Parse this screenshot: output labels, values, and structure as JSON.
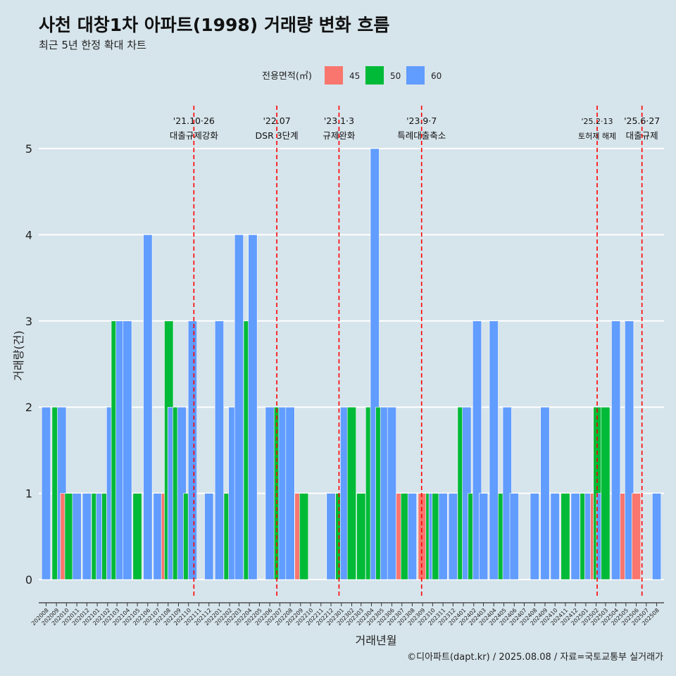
{
  "title": "사천 대창1차 아파트(1998) 거래량 변화 흐름",
  "subtitle": "최근 5년 한정 확대 차트",
  "caption": "©디아파트(dapt.kr) / 2025.08.08 / 자료=국토교통부 실거래가",
  "colors": {
    "background": "#d6e4eb",
    "s45": "#f8766d",
    "s50": "#00ba38",
    "s60": "#619cff",
    "vline": "#ff0000",
    "grid": "#ffffff"
  },
  "chart_data": {
    "type": "bar",
    "title": "사천 대창1차 아파트(1998) 거래량 변화 흐름",
    "subtitle": "최근 5년 한정 확대 차트",
    "xlabel": "거래년월",
    "ylabel": "거래량(건)",
    "ylim": [
      0,
      5
    ],
    "y_ticks": [
      0,
      1,
      2,
      3,
      4,
      5
    ],
    "grid": true,
    "legend": {
      "title": "전용면적(㎡)",
      "position": "top",
      "entries": [
        "45",
        "50",
        "60"
      ]
    },
    "categories": [
      "202008",
      "202009",
      "202010",
      "202011",
      "202012",
      "202101",
      "202102",
      "202103",
      "202104",
      "202105",
      "202106",
      "202107",
      "202108",
      "202109",
      "202110",
      "202111",
      "202112",
      "202201",
      "202202",
      "202203",
      "202204",
      "202205",
      "202206",
      "202207",
      "202208",
      "202209",
      "202210",
      "202211",
      "202212",
      "202301",
      "202302",
      "202303",
      "202304",
      "202305",
      "202306",
      "202307",
      "202308",
      "202309",
      "202310",
      "202311",
      "202312",
      "202401",
      "202402",
      "202403",
      "202404",
      "202405",
      "202406",
      "202407",
      "202408",
      "202409",
      "202410",
      "202411",
      "202412",
      "202501",
      "202502",
      "202503",
      "202504",
      "202505",
      "202506",
      "202507",
      "202508"
    ],
    "bars": [
      {
        "month": "202008",
        "series": "60",
        "x": "2020-08-10",
        "y": 2
      },
      {
        "month": "202009",
        "series": "50",
        "x": "2020-09-10",
        "y": 2
      },
      {
        "month": "202009",
        "series": "60",
        "x": "2020-09-26",
        "y": 2
      },
      {
        "month": "202010",
        "series": "45",
        "x": "2020-10-05",
        "y": 1
      },
      {
        "month": "202010",
        "series": "50",
        "x": "2020-10-18",
        "y": 1
      },
      {
        "month": "202011",
        "series": "60",
        "x": "2020-11-10",
        "y": 1
      },
      {
        "month": "202012",
        "series": "60",
        "x": "2020-12-10",
        "y": 1
      },
      {
        "month": "202101",
        "series": "50",
        "x": "2021-01-06",
        "y": 1
      },
      {
        "month": "202101",
        "series": "60",
        "x": "2021-01-20",
        "y": 1
      },
      {
        "month": "202102",
        "series": "50",
        "x": "2021-02-06",
        "y": 1
      },
      {
        "month": "202102",
        "series": "60",
        "x": "2021-02-20",
        "y": 2
      },
      {
        "month": "202103",
        "series": "50",
        "x": "2021-03-06",
        "y": 3
      },
      {
        "month": "202103",
        "series": "60",
        "x": "2021-03-20",
        "y": 3
      },
      {
        "month": "202104",
        "series": "60",
        "x": "2021-04-10",
        "y": 3
      },
      {
        "month": "202105",
        "series": "50",
        "x": "2021-05-10",
        "y": 1
      },
      {
        "month": "202106",
        "series": "60",
        "x": "2021-06-10",
        "y": 4
      },
      {
        "month": "202107",
        "series": "60",
        "x": "2021-07-10",
        "y": 1
      },
      {
        "month": "202108",
        "series": "45",
        "x": "2021-08-03",
        "y": 1
      },
      {
        "month": "202108",
        "series": "50",
        "x": "2021-08-12",
        "y": 3
      },
      {
        "month": "202108",
        "series": "60",
        "x": "2021-08-22",
        "y": 2
      },
      {
        "month": "202109",
        "series": "50",
        "x": "2021-09-06",
        "y": 2
      },
      {
        "month": "202109",
        "series": "60",
        "x": "2021-09-20",
        "y": 2
      },
      {
        "month": "202110",
        "series": "50",
        "x": "2021-10-08",
        "y": 1
      },
      {
        "month": "202110",
        "series": "60",
        "x": "2021-10-22",
        "y": 3
      },
      {
        "month": "202112",
        "series": "60",
        "x": "2021-12-10",
        "y": 1
      },
      {
        "month": "202201",
        "series": "60",
        "x": "2022-01-10",
        "y": 3
      },
      {
        "month": "202202",
        "series": "50",
        "x": "2022-02-06",
        "y": 1
      },
      {
        "month": "202202",
        "series": "60",
        "x": "2022-02-20",
        "y": 2
      },
      {
        "month": "202203",
        "series": "60",
        "x": "2022-03-10",
        "y": 4
      },
      {
        "month": "202204",
        "series": "50",
        "x": "2022-04-06",
        "y": 3
      },
      {
        "month": "202204",
        "series": "60",
        "x": "2022-04-20",
        "y": 4
      },
      {
        "month": "202206",
        "series": "60",
        "x": "2022-06-10",
        "y": 2
      },
      {
        "month": "202207",
        "series": "50",
        "x": "2022-07-06",
        "y": 2
      },
      {
        "month": "202207",
        "series": "60",
        "x": "2022-07-20",
        "y": 2
      },
      {
        "month": "202208",
        "series": "60",
        "x": "2022-08-10",
        "y": 2
      },
      {
        "month": "202209",
        "series": "45",
        "x": "2022-09-06",
        "y": 1
      },
      {
        "month": "202209",
        "series": "50",
        "x": "2022-09-20",
        "y": 1
      },
      {
        "month": "202212",
        "series": "60",
        "x": "2022-12-10",
        "y": 1
      },
      {
        "month": "202301",
        "series": "50",
        "x": "2023-01-06",
        "y": 1
      },
      {
        "month": "202301",
        "series": "60",
        "x": "2023-01-20",
        "y": 2
      },
      {
        "month": "202302",
        "series": "50",
        "x": "2023-02-10",
        "y": 2
      },
      {
        "month": "202303",
        "series": "50",
        "x": "2023-03-10",
        "y": 1
      },
      {
        "month": "202304",
        "series": "50",
        "x": "2023-04-06",
        "y": 2
      },
      {
        "month": "202304",
        "series": "60",
        "x": "2023-04-20",
        "y": 5
      },
      {
        "month": "202305",
        "series": "50",
        "x": "2023-05-06",
        "y": 2
      },
      {
        "month": "202305",
        "series": "60",
        "x": "2023-05-20",
        "y": 2
      },
      {
        "month": "202306",
        "series": "60",
        "x": "2023-06-10",
        "y": 2
      },
      {
        "month": "202307",
        "series": "45",
        "x": "2023-07-06",
        "y": 1
      },
      {
        "month": "202307",
        "series": "50",
        "x": "2023-07-20",
        "y": 1
      },
      {
        "month": "202308",
        "series": "60",
        "x": "2023-08-10",
        "y": 1
      },
      {
        "month": "202309",
        "series": "45",
        "x": "2023-09-10",
        "y": 1
      },
      {
        "month": "202310",
        "series": "50",
        "x": "2023-10-03",
        "y": 1
      },
      {
        "month": "202310",
        "series": "60",
        "x": "2023-10-12",
        "y": 1
      },
      {
        "month": "202310",
        "series": "50",
        "x": "2023-10-22",
        "y": 1
      },
      {
        "month": "202311",
        "series": "60",
        "x": "2023-11-10",
        "y": 1
      },
      {
        "month": "202312",
        "series": "60",
        "x": "2023-12-10",
        "y": 1
      },
      {
        "month": "202401",
        "series": "50",
        "x": "2024-01-06",
        "y": 2
      },
      {
        "month": "202401",
        "series": "60",
        "x": "2024-01-20",
        "y": 2
      },
      {
        "month": "202402",
        "series": "50",
        "x": "2024-02-06",
        "y": 1
      },
      {
        "month": "202402",
        "series": "60",
        "x": "2024-02-20",
        "y": 3
      },
      {
        "month": "202403",
        "series": "60",
        "x": "2024-03-10",
        "y": 1
      },
      {
        "month": "202404",
        "series": "60",
        "x": "2024-04-10",
        "y": 3
      },
      {
        "month": "202405",
        "series": "50",
        "x": "2024-05-06",
        "y": 1
      },
      {
        "month": "202405",
        "series": "60",
        "x": "2024-05-20",
        "y": 2
      },
      {
        "month": "202406",
        "series": "60",
        "x": "2024-06-10",
        "y": 1
      },
      {
        "month": "202408",
        "series": "60",
        "x": "2024-08-10",
        "y": 1
      },
      {
        "month": "202409",
        "series": "60",
        "x": "2024-09-10",
        "y": 2
      },
      {
        "month": "202410",
        "series": "60",
        "x": "2024-10-10",
        "y": 1
      },
      {
        "month": "202411",
        "series": "50",
        "x": "2024-11-10",
        "y": 1
      },
      {
        "month": "202412",
        "series": "60",
        "x": "2024-12-10",
        "y": 1
      },
      {
        "month": "202501",
        "series": "50",
        "x": "2025-01-06",
        "y": 1
      },
      {
        "month": "202501",
        "series": "60",
        "x": "2025-01-20",
        "y": 1
      },
      {
        "month": "202502",
        "series": "45",
        "x": "2025-02-06",
        "y": 1
      },
      {
        "month": "202502",
        "series": "50",
        "x": "2025-02-15",
        "y": 2
      },
      {
        "month": "202502",
        "series": "60",
        "x": "2025-02-24",
        "y": 1
      },
      {
        "month": "202503",
        "series": "50",
        "x": "2025-03-10",
        "y": 2
      },
      {
        "month": "202504",
        "series": "60",
        "x": "2025-04-10",
        "y": 3
      },
      {
        "month": "202505",
        "series": "45",
        "x": "2025-05-06",
        "y": 1
      },
      {
        "month": "202505",
        "series": "60",
        "x": "2025-05-20",
        "y": 3
      },
      {
        "month": "202506",
        "series": "45",
        "x": "2025-06-10",
        "y": 1
      },
      {
        "month": "202508",
        "series": "60",
        "x": "2025-08-10",
        "y": 1
      }
    ],
    "annotations": [
      {
        "date": "2021-10-26",
        "line1": "'21.10·26",
        "line2": "대출규제강화"
      },
      {
        "date": "2022-07-01",
        "line1": "'22.07",
        "line2": "DSR 3단계"
      },
      {
        "date": "2023-01-03",
        "line1": "'23.1·3",
        "line2": "규제완화"
      },
      {
        "date": "2023-09-07",
        "line1": "'23.9·7",
        "line2": "특례대출축소"
      },
      {
        "date": "2025-02-13",
        "line1": "'25.2·13",
        "line2": "토허제 해제"
      },
      {
        "date": "2025-06-27",
        "line1": "'25.6·27",
        "line2": "대출규제"
      }
    ]
  }
}
